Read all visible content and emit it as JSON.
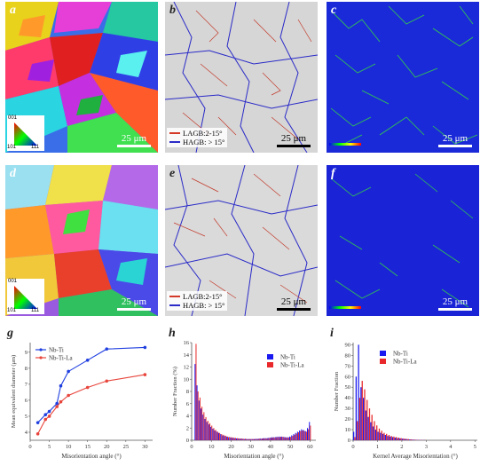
{
  "figure": {
    "panels": [
      {
        "id": "a",
        "letter": "a",
        "type": "ipf-map",
        "scale": "25 μm"
      },
      {
        "id": "b",
        "letter": "b",
        "type": "boundary-map",
        "scale": "25 μm"
      },
      {
        "id": "c",
        "letter": "c",
        "type": "kam-map",
        "scale": "25 μm"
      },
      {
        "id": "d",
        "letter": "d",
        "type": "ipf-map",
        "scale": "25 μm"
      },
      {
        "id": "e",
        "letter": "e",
        "type": "boundary-map",
        "scale": "25 μm"
      },
      {
        "id": "f",
        "letter": "f",
        "type": "kam-map",
        "scale": "25 μm"
      }
    ],
    "ipf_key": {
      "top": "001",
      "left": "101",
      "right": "111"
    },
    "boundary_legend": {
      "lagb": "LAGB:2-15°",
      "hagb": "HAGB: > 15°",
      "lagb_color": "#d43a2a",
      "hagb_color": "#2a2ac8"
    },
    "kam_scale_caption": "Kernel Avar. Misorientation"
  },
  "chart_data": [
    {
      "panel": "g",
      "type": "line",
      "xlabel": "Misorientation angle (°)",
      "ylabel": "Mean equivalent diameter (μm)",
      "x_ticks": [
        0,
        5,
        10,
        15,
        20,
        25,
        30
      ],
      "y_ticks": [
        4,
        5,
        6,
        7,
        8,
        9
      ],
      "xlim": [
        0,
        32
      ],
      "ylim": [
        3.5,
        9.6
      ],
      "legend_position": "top-left",
      "series": [
        {
          "name": "Nb-Ti",
          "color": "#1f3fe0",
          "points": [
            [
              2,
              4.6
            ],
            [
              4,
              5.1
            ],
            [
              5,
              5.3
            ],
            [
              7,
              5.8
            ],
            [
              8,
              6.9
            ],
            [
              10,
              7.8
            ],
            [
              15,
              8.5
            ],
            [
              20,
              9.2
            ],
            [
              30,
              9.3
            ]
          ]
        },
        {
          "name": "Nb-Ti-La",
          "color": "#e8453c",
          "points": [
            [
              2,
              3.9
            ],
            [
              4,
              4.8
            ],
            [
              5,
              5.0
            ],
            [
              7,
              5.6
            ],
            [
              8,
              5.9
            ],
            [
              10,
              6.3
            ],
            [
              15,
              6.8
            ],
            [
              20,
              7.2
            ],
            [
              30,
              7.6
            ]
          ]
        }
      ]
    },
    {
      "panel": "h",
      "type": "bar",
      "xlabel": "Misorientation angle (°)",
      "ylabel": "Number Fraction (%)",
      "x_ticks": [
        0,
        10,
        20,
        30,
        40,
        50,
        60
      ],
      "y_ticks": [
        0,
        2,
        4,
        6,
        8,
        10,
        12,
        14,
        16
      ],
      "xlim": [
        0,
        63
      ],
      "ylim": [
        0,
        16
      ],
      "bin_start": 2,
      "bin_width": 1,
      "legend_position": "top-right",
      "series": [
        {
          "name": "Nb-Ti",
          "color": "#1a1af0",
          "values": [
            12.5,
            9.0,
            6.5,
            5.2,
            4.2,
            3.5,
            3.0,
            2.6,
            2.2,
            1.9,
            1.6,
            1.4,
            1.2,
            1.0,
            0.8,
            0.7,
            0.6,
            0.5,
            0.45,
            0.4,
            0.35,
            0.3,
            0.3,
            0.25,
            0.25,
            0.2,
            0.2,
            0.2,
            0.2,
            0.2,
            0.2,
            0.25,
            0.25,
            0.3,
            0.3,
            0.35,
            0.35,
            0.4,
            0.45,
            0.5,
            0.5,
            0.55,
            0.6,
            0.6,
            0.6,
            0.55,
            0.5,
            0.5,
            0.6,
            0.8,
            1.0,
            1.2,
            1.4,
            1.6,
            1.8,
            1.7,
            1.5,
            2.0,
            3.0
          ]
        },
        {
          "name": "Nb-Ti-La",
          "color": "#e8282a",
          "values": [
            15.8,
            8.0,
            7.0,
            5.5,
            4.6,
            3.8,
            3.2,
            2.8,
            2.4,
            2.0,
            1.7,
            1.4,
            1.2,
            1.0,
            0.9,
            0.75,
            0.6,
            0.55,
            0.5,
            0.45,
            0.4,
            0.35,
            0.3,
            0.3,
            0.25,
            0.25,
            0.2,
            0.2,
            0.2,
            0.2,
            0.2,
            0.2,
            0.25,
            0.25,
            0.3,
            0.3,
            0.3,
            0.35,
            0.4,
            0.45,
            0.45,
            0.5,
            0.5,
            0.55,
            0.55,
            0.5,
            0.45,
            0.45,
            0.55,
            0.7,
            0.9,
            1.1,
            1.3,
            1.5,
            1.6,
            1.5,
            1.4,
            1.8,
            2.4
          ]
        }
      ]
    },
    {
      "panel": "i",
      "type": "bar",
      "xlabel": "Kernel Average Misorientation (°)",
      "ylabel": "Number Fraction",
      "x_ticks": [
        0,
        1,
        2,
        3,
        4,
        5
      ],
      "y_ticks": [
        0,
        10,
        20,
        30,
        40,
        50,
        60,
        70,
        80,
        90
      ],
      "xlim": [
        0,
        5.1
      ],
      "ylim": [
        0,
        92
      ],
      "bin_start": 0.05,
      "bin_width": 0.1,
      "legend_position": "top-center",
      "series": [
        {
          "name": "Nb-Ti",
          "color": "#1a1af0",
          "values": [
            8,
            60,
            90,
            50,
            40,
            28,
            22,
            17,
            13,
            10,
            8,
            7,
            6,
            5,
            4,
            3.5,
            3,
            2.5,
            2,
            1.8,
            1.5,
            1.2,
            1,
            0.8,
            0.6,
            0.5,
            0.4,
            0.3,
            0.2,
            0.2
          ]
        },
        {
          "name": "Nb-Ti-La",
          "color": "#e8282a",
          "values": [
            3,
            18,
            40,
            56,
            48,
            38,
            30,
            24,
            18,
            14,
            11,
            9,
            7,
            6,
            5,
            4,
            3.5,
            3,
            2.5,
            2,
            1.7,
            1.4,
            1.1,
            0.9,
            0.7,
            0.5,
            0.4,
            0.3,
            0.2,
            0.2
          ]
        }
      ]
    }
  ]
}
